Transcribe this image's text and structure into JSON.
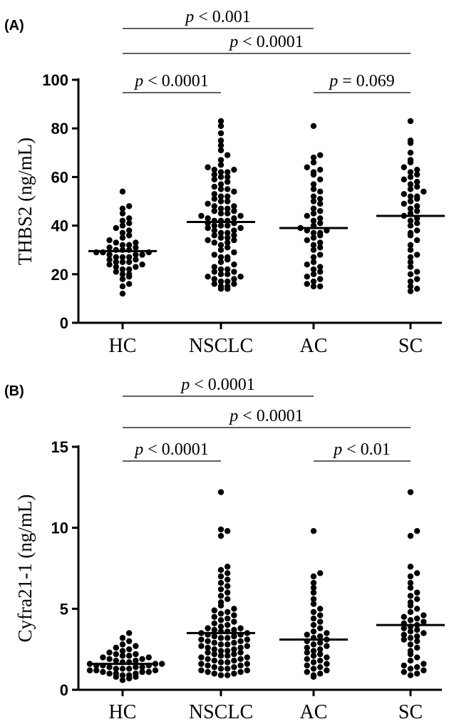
{
  "chart_data": [
    {
      "type": "scatter",
      "panel_label": "(A)",
      "ylabel": "THBS2 (ng/mL)",
      "ylim": [
        0,
        100
      ],
      "yticks": [
        "0",
        "20",
        "40",
        "60",
        "80",
        "100"
      ],
      "categories": [
        "HC",
        "NSCLC",
        "AC",
        "SC"
      ],
      "medians": [
        29.5,
        41.5,
        39,
        44
      ],
      "series": [
        {
          "values": [
            12,
            15,
            16,
            18,
            19,
            20,
            20,
            21,
            22,
            22,
            23,
            23,
            24,
            24,
            25,
            25,
            25,
            26,
            26,
            27,
            27,
            27,
            28,
            28,
            28,
            29,
            29,
            29,
            30,
            30,
            30,
            31,
            31,
            32,
            32,
            33,
            33,
            34,
            35,
            36,
            37,
            38,
            39,
            40,
            41,
            42,
            43,
            45,
            47,
            48,
            54
          ]
        },
        {
          "values": [
            14,
            14,
            15,
            15,
            16,
            16,
            17,
            17,
            18,
            18,
            19,
            19,
            20,
            20,
            21,
            21,
            22,
            22,
            23,
            24,
            25,
            26,
            27,
            27,
            28,
            29,
            30,
            31,
            32,
            33,
            33,
            34,
            34,
            35,
            35,
            36,
            36,
            37,
            37,
            38,
            38,
            39,
            39,
            40,
            40,
            40,
            41,
            41,
            42,
            42,
            42,
            43,
            43,
            44,
            44,
            45,
            45,
            46,
            46,
            47,
            47,
            48,
            48,
            49,
            50,
            50,
            51,
            52,
            52,
            53,
            54,
            55,
            55,
            56,
            57,
            58,
            59,
            60,
            60,
            61,
            62,
            62,
            63,
            63,
            64,
            65,
            67,
            69,
            71,
            73,
            75,
            78,
            81,
            83
          ]
        },
        {
          "values": [
            15,
            15,
            16,
            17,
            18,
            19,
            20,
            21,
            22,
            23,
            24,
            25,
            27,
            28,
            30,
            31,
            32,
            33,
            34,
            35,
            36,
            37,
            37,
            38,
            38,
            39,
            40,
            41,
            42,
            43,
            44,
            45,
            46,
            47,
            49,
            50,
            51,
            52,
            54,
            55,
            57,
            59,
            61,
            62,
            63,
            64,
            66,
            68,
            69,
            81
          ]
        },
        {
          "values": [
            13,
            14,
            15,
            17,
            18,
            20,
            21,
            23,
            25,
            27,
            28,
            30,
            32,
            34,
            36,
            37,
            38,
            40,
            41,
            42,
            43,
            44,
            45,
            46,
            47,
            48,
            49,
            50,
            51,
            52,
            52,
            53,
            54,
            55,
            56,
            57,
            58,
            59,
            60,
            61,
            62,
            63,
            64,
            66,
            67,
            70,
            74,
            75,
            83
          ]
        }
      ],
      "comparisons": [
        {
          "from": "HC",
          "to": "AC",
          "text": "p < 0.001",
          "level": 3
        },
        {
          "from": "HC",
          "to": "SC",
          "text": "p < 0.0001",
          "level": 2
        },
        {
          "from": "HC",
          "to": "NSCLC",
          "text": "p < 0.0001",
          "level": 1
        },
        {
          "from": "AC",
          "to": "SC",
          "text": "p = 0.069",
          "level": 1
        }
      ]
    },
    {
      "type": "scatter",
      "panel_label": "(B)",
      "ylabel": "Cyfra21-1 (ng/mL)",
      "ylim": [
        0,
        15
      ],
      "yticks": [
        "0",
        "5",
        "10",
        "15"
      ],
      "categories": [
        "HC",
        "NSCLC",
        "AC",
        "SC"
      ],
      "medians": [
        1.6,
        3.5,
        3.1,
        4.0
      ],
      "series": [
        {
          "values": [
            0.6,
            0.7,
            0.8,
            0.8,
            0.9,
            0.9,
            1.0,
            1.0,
            1.0,
            1.1,
            1.1,
            1.1,
            1.2,
            1.2,
            1.2,
            1.3,
            1.3,
            1.3,
            1.4,
            1.4,
            1.4,
            1.5,
            1.5,
            1.5,
            1.6,
            1.6,
            1.6,
            1.7,
            1.7,
            1.8,
            1.8,
            1.9,
            1.9,
            2.0,
            2.0,
            2.1,
            2.1,
            2.2,
            2.2,
            2.3,
            2.4,
            2.5,
            2.6,
            2.7,
            2.8,
            3.0,
            3.2,
            3.5
          ]
        },
        {
          "values": [
            0.9,
            0.9,
            1.0,
            1.0,
            1.1,
            1.1,
            1.2,
            1.2,
            1.3,
            1.3,
            1.4,
            1.4,
            1.5,
            1.5,
            1.6,
            1.6,
            1.7,
            1.7,
            1.8,
            1.8,
            1.9,
            1.9,
            2.0,
            2.0,
            2.1,
            2.1,
            2.2,
            2.2,
            2.3,
            2.3,
            2.4,
            2.4,
            2.5,
            2.5,
            2.6,
            2.6,
            2.7,
            2.7,
            2.8,
            2.8,
            2.9,
            2.9,
            3.0,
            3.0,
            3.1,
            3.1,
            3.2,
            3.2,
            3.3,
            3.3,
            3.4,
            3.4,
            3.5,
            3.5,
            3.6,
            3.6,
            3.7,
            3.7,
            3.8,
            3.8,
            3.9,
            4.0,
            4.1,
            4.2,
            4.3,
            4.4,
            4.5,
            4.6,
            4.7,
            4.8,
            4.9,
            5.0,
            5.2,
            5.4,
            5.6,
            5.8,
            6.0,
            6.2,
            6.4,
            6.6,
            6.8,
            7.0,
            7.2,
            7.4,
            7.6,
            9.5,
            9.8,
            9.9,
            12.2
          ]
        },
        {
          "values": [
            0.8,
            0.9,
            1.0,
            1.1,
            1.2,
            1.3,
            1.4,
            1.5,
            1.6,
            1.7,
            1.8,
            1.9,
            2.0,
            2.1,
            2.2,
            2.3,
            2.4,
            2.5,
            2.6,
            2.7,
            2.8,
            2.9,
            3.0,
            3.1,
            3.2,
            3.3,
            3.4,
            3.5,
            3.6,
            3.8,
            4.0,
            4.2,
            4.4,
            4.6,
            4.8,
            5.0,
            5.3,
            5.6,
            6.0,
            6.3,
            6.6,
            7.0,
            7.2,
            9.8
          ]
        },
        {
          "values": [
            0.9,
            1.0,
            1.1,
            1.2,
            1.3,
            1.4,
            1.5,
            1.6,
            1.8,
            2.0,
            2.2,
            2.4,
            2.6,
            2.8,
            3.0,
            3.1,
            3.2,
            3.3,
            3.4,
            3.5,
            3.6,
            3.7,
            3.8,
            3.9,
            4.0,
            4.1,
            4.2,
            4.3,
            4.4,
            4.5,
            4.6,
            4.8,
            5.0,
            5.2,
            5.4,
            5.6,
            5.8,
            6.0,
            6.3,
            6.6,
            7.0,
            7.2,
            7.6,
            9.5,
            9.8,
            12.2
          ]
        }
      ],
      "comparisons": [
        {
          "from": "HC",
          "to": "AC",
          "text": "p < 0.0001",
          "level": 3
        },
        {
          "from": "HC",
          "to": "SC",
          "text": "p < 0.0001",
          "level": 2
        },
        {
          "from": "HC",
          "to": "NSCLC",
          "text": "p < 0.0001",
          "level": 1
        },
        {
          "from": "AC",
          "to": "SC",
          "text": "p < 0.01",
          "level": 1
        }
      ]
    }
  ]
}
